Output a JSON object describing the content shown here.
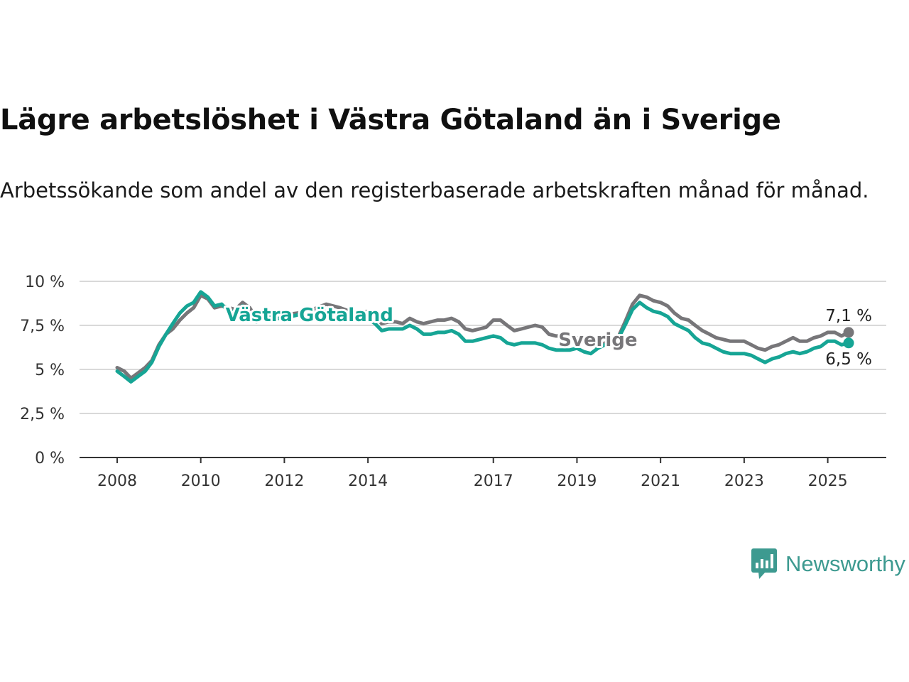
{
  "title": "Lägre arbetslöshet i Västra Götaland än i Sverige",
  "subtitle": "Arbetssökande som andel av den registerbaserade arbetskraften månad för månad.",
  "brand": {
    "name": "Newsworthy",
    "color": "#3d9a90",
    "icon": "bar-chart-speech-bubble-icon"
  },
  "chart_data": {
    "type": "line",
    "title": "Lägre arbetslöshet i Västra Götaland än i Sverige",
    "subtitle": "Arbetssökande som andel av den registerbaserade arbetskraften månad för månad.",
    "xlabel": "",
    "ylabel": "",
    "x_unit": "year",
    "xlim": [
      2007.1,
      2026.4
    ],
    "ylim": [
      0,
      10
    ],
    "yticks": [
      0,
      2.5,
      5,
      7.5,
      10
    ],
    "ytick_labels": [
      "0 %",
      "2,5 %",
      "5 %",
      "7,5 %",
      "10 %"
    ],
    "xticks": [
      2008,
      2010,
      2012,
      2014,
      2017,
      2019,
      2021,
      2023,
      2025
    ],
    "xtick_labels": [
      "2008",
      "2010",
      "2012",
      "2014",
      "2017",
      "2019",
      "2021",
      "2023",
      "2025"
    ],
    "grid": "horizontal",
    "legend": "inline labels",
    "series": [
      {
        "name": "Sverige",
        "color": "#777679",
        "end_label": "7,1 %",
        "points": [
          [
            2008.0,
            5.1
          ],
          [
            2008.17,
            4.9
          ],
          [
            2008.33,
            4.5
          ],
          [
            2008.5,
            4.8
          ],
          [
            2008.67,
            5.1
          ],
          [
            2008.83,
            5.5
          ],
          [
            2009.0,
            6.4
          ],
          [
            2009.17,
            7.0
          ],
          [
            2009.33,
            7.3
          ],
          [
            2009.5,
            7.8
          ],
          [
            2009.67,
            8.2
          ],
          [
            2009.83,
            8.5
          ],
          [
            2010.0,
            9.2
          ],
          [
            2010.17,
            9.0
          ],
          [
            2010.33,
            8.5
          ],
          [
            2010.5,
            8.6
          ],
          [
            2010.67,
            8.5
          ],
          [
            2010.83,
            8.4
          ],
          [
            2011.0,
            8.8
          ],
          [
            2011.17,
            8.5
          ],
          [
            2011.33,
            7.9
          ],
          [
            2011.5,
            8.1
          ],
          [
            2011.67,
            8.2
          ],
          [
            2011.83,
            8.2
          ],
          [
            2012.0,
            8.1
          ],
          [
            2012.33,
            8.2
          ],
          [
            2012.67,
            8.4
          ],
          [
            2013.0,
            8.7
          ],
          [
            2013.33,
            8.5
          ],
          [
            2013.67,
            8.2
          ],
          [
            2014.0,
            8.3
          ],
          [
            2014.17,
            8.0
          ],
          [
            2014.33,
            7.6
          ],
          [
            2014.5,
            7.7
          ],
          [
            2014.67,
            7.7
          ],
          [
            2014.83,
            7.6
          ],
          [
            2015.0,
            7.9
          ],
          [
            2015.17,
            7.7
          ],
          [
            2015.33,
            7.6
          ],
          [
            2015.5,
            7.7
          ],
          [
            2015.67,
            7.8
          ],
          [
            2015.83,
            7.8
          ],
          [
            2016.0,
            7.9
          ],
          [
            2016.17,
            7.7
          ],
          [
            2016.33,
            7.3
          ],
          [
            2016.5,
            7.2
          ],
          [
            2016.67,
            7.3
          ],
          [
            2016.83,
            7.4
          ],
          [
            2017.0,
            7.8
          ],
          [
            2017.17,
            7.8
          ],
          [
            2017.33,
            7.5
          ],
          [
            2017.5,
            7.2
          ],
          [
            2017.67,
            7.3
          ],
          [
            2017.83,
            7.4
          ],
          [
            2018.0,
            7.5
          ],
          [
            2018.17,
            7.4
          ],
          [
            2018.33,
            7.0
          ],
          [
            2018.5,
            6.9
          ],
          [
            2018.67,
            6.9
          ],
          [
            2018.83,
            6.8
          ],
          [
            2019.0,
            6.8
          ],
          [
            2019.17,
            6.6
          ],
          [
            2019.33,
            6.4
          ],
          [
            2019.5,
            6.3
          ],
          [
            2019.67,
            6.5
          ],
          [
            2019.83,
            6.6
          ],
          [
            2020.0,
            6.9
          ],
          [
            2020.17,
            7.8
          ],
          [
            2020.33,
            8.7
          ],
          [
            2020.5,
            9.2
          ],
          [
            2020.67,
            9.1
          ],
          [
            2020.83,
            8.9
          ],
          [
            2021.0,
            8.8
          ],
          [
            2021.17,
            8.6
          ],
          [
            2021.33,
            8.2
          ],
          [
            2021.5,
            7.9
          ],
          [
            2021.67,
            7.8
          ],
          [
            2021.83,
            7.5
          ],
          [
            2022.0,
            7.2
          ],
          [
            2022.17,
            7.0
          ],
          [
            2022.33,
            6.8
          ],
          [
            2022.5,
            6.7
          ],
          [
            2022.67,
            6.6
          ],
          [
            2022.83,
            6.6
          ],
          [
            2023.0,
            6.6
          ],
          [
            2023.17,
            6.4
          ],
          [
            2023.33,
            6.2
          ],
          [
            2023.5,
            6.1
          ],
          [
            2023.67,
            6.3
          ],
          [
            2023.83,
            6.4
          ],
          [
            2024.0,
            6.6
          ],
          [
            2024.17,
            6.8
          ],
          [
            2024.33,
            6.6
          ],
          [
            2024.5,
            6.6
          ],
          [
            2024.67,
            6.8
          ],
          [
            2024.83,
            6.9
          ],
          [
            2025.0,
            7.1
          ],
          [
            2025.17,
            7.1
          ],
          [
            2025.33,
            6.9
          ],
          [
            2025.5,
            7.1
          ]
        ]
      },
      {
        "name": "Västra Götaland",
        "color": "#16a595",
        "end_label": "6,5 %",
        "points": [
          [
            2008.0,
            4.9
          ],
          [
            2008.17,
            4.6
          ],
          [
            2008.33,
            4.3
          ],
          [
            2008.5,
            4.6
          ],
          [
            2008.67,
            4.9
          ],
          [
            2008.83,
            5.4
          ],
          [
            2009.0,
            6.3
          ],
          [
            2009.17,
            7.0
          ],
          [
            2009.33,
            7.6
          ],
          [
            2009.5,
            8.2
          ],
          [
            2009.67,
            8.6
          ],
          [
            2009.83,
            8.8
          ],
          [
            2010.0,
            9.4
          ],
          [
            2010.17,
            9.1
          ],
          [
            2010.33,
            8.6
          ],
          [
            2010.5,
            8.7
          ],
          [
            2010.67,
            8.3
          ],
          [
            2010.83,
            8.3
          ],
          [
            2011.0,
            8.6
          ],
          [
            2011.17,
            8.0
          ],
          [
            2011.33,
            7.7
          ],
          [
            2011.5,
            7.9
          ],
          [
            2011.67,
            8.0
          ],
          [
            2011.83,
            7.9
          ],
          [
            2012.0,
            7.9
          ],
          [
            2012.33,
            8.1
          ],
          [
            2012.67,
            8.2
          ],
          [
            2013.0,
            8.3
          ],
          [
            2013.33,
            8.2
          ],
          [
            2013.67,
            8.0
          ],
          [
            2014.0,
            7.9
          ],
          [
            2014.17,
            7.6
          ],
          [
            2014.33,
            7.2
          ],
          [
            2014.5,
            7.3
          ],
          [
            2014.67,
            7.3
          ],
          [
            2014.83,
            7.3
          ],
          [
            2015.0,
            7.5
          ],
          [
            2015.17,
            7.3
          ],
          [
            2015.33,
            7.0
          ],
          [
            2015.5,
            7.0
          ],
          [
            2015.67,
            7.1
          ],
          [
            2015.83,
            7.1
          ],
          [
            2016.0,
            7.2
          ],
          [
            2016.17,
            7.0
          ],
          [
            2016.33,
            6.6
          ],
          [
            2016.5,
            6.6
          ],
          [
            2016.67,
            6.7
          ],
          [
            2016.83,
            6.8
          ],
          [
            2017.0,
            6.9
          ],
          [
            2017.17,
            6.8
          ],
          [
            2017.33,
            6.5
          ],
          [
            2017.5,
            6.4
          ],
          [
            2017.67,
            6.5
          ],
          [
            2017.83,
            6.5
          ],
          [
            2018.0,
            6.5
          ],
          [
            2018.17,
            6.4
          ],
          [
            2018.33,
            6.2
          ],
          [
            2018.5,
            6.1
          ],
          [
            2018.67,
            6.1
          ],
          [
            2018.83,
            6.1
          ],
          [
            2019.0,
            6.2
          ],
          [
            2019.17,
            6.0
          ],
          [
            2019.33,
            5.9
          ],
          [
            2019.5,
            6.2
          ],
          [
            2019.67,
            6.4
          ],
          [
            2019.83,
            6.5
          ],
          [
            2020.0,
            6.8
          ],
          [
            2020.17,
            7.6
          ],
          [
            2020.33,
            8.4
          ],
          [
            2020.5,
            8.8
          ],
          [
            2020.67,
            8.5
          ],
          [
            2020.83,
            8.3
          ],
          [
            2021.0,
            8.2
          ],
          [
            2021.17,
            8.0
          ],
          [
            2021.33,
            7.6
          ],
          [
            2021.5,
            7.4
          ],
          [
            2021.67,
            7.2
          ],
          [
            2021.83,
            6.8
          ],
          [
            2022.0,
            6.5
          ],
          [
            2022.17,
            6.4
          ],
          [
            2022.33,
            6.2
          ],
          [
            2022.5,
            6.0
          ],
          [
            2022.67,
            5.9
          ],
          [
            2022.83,
            5.9
          ],
          [
            2023.0,
            5.9
          ],
          [
            2023.17,
            5.8
          ],
          [
            2023.33,
            5.6
          ],
          [
            2023.5,
            5.4
          ],
          [
            2023.67,
            5.6
          ],
          [
            2023.83,
            5.7
          ],
          [
            2024.0,
            5.9
          ],
          [
            2024.17,
            6.0
          ],
          [
            2024.33,
            5.9
          ],
          [
            2024.5,
            6.0
          ],
          [
            2024.67,
            6.2
          ],
          [
            2024.83,
            6.3
          ],
          [
            2025.0,
            6.6
          ],
          [
            2025.17,
            6.6
          ],
          [
            2025.33,
            6.4
          ],
          [
            2025.5,
            6.5
          ]
        ]
      }
    ]
  }
}
